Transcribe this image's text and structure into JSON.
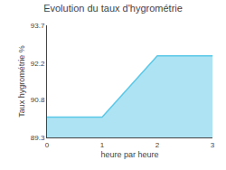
{
  "chart_data": {
    "type": "area",
    "title": "Evolution du taux d'hygrométrie",
    "xlabel": "heure par heure",
    "ylabel": "Taux hygrométrie %",
    "x": [
      0,
      1,
      2,
      3
    ],
    "values": [
      90.1,
      90.1,
      92.5,
      92.5
    ],
    "xlim": [
      0,
      3
    ],
    "ylim": [
      89.3,
      93.7
    ],
    "xticks": [
      0,
      1,
      2,
      3
    ],
    "yticks": [
      89.3,
      90.8,
      92.2,
      93.7
    ],
    "color": "#5bc8e8",
    "grid": false
  }
}
